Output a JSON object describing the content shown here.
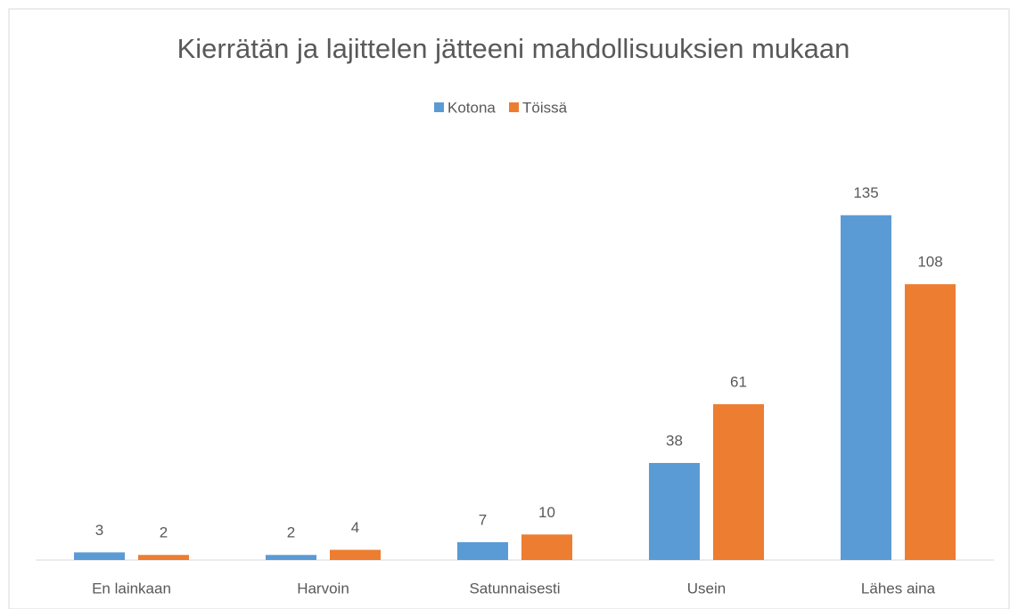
{
  "chart_data": {
    "type": "bar",
    "title": "Kierrätän ja lajittelen jätteeni mahdollisuuksien mukaan",
    "categories": [
      "En lainkaan",
      "Harvoin",
      "Satunnaisesti",
      "Usein",
      "Lähes aina"
    ],
    "series": [
      {
        "name": "Kotona",
        "color": "#5b9bd5",
        "values": [
          3,
          2,
          7,
          38,
          135
        ]
      },
      {
        "name": "Töissä",
        "color": "#ed7d31",
        "values": [
          2,
          4,
          10,
          61,
          108
        ]
      }
    ],
    "ylim": [
      0,
      160
    ],
    "legend": "top"
  }
}
